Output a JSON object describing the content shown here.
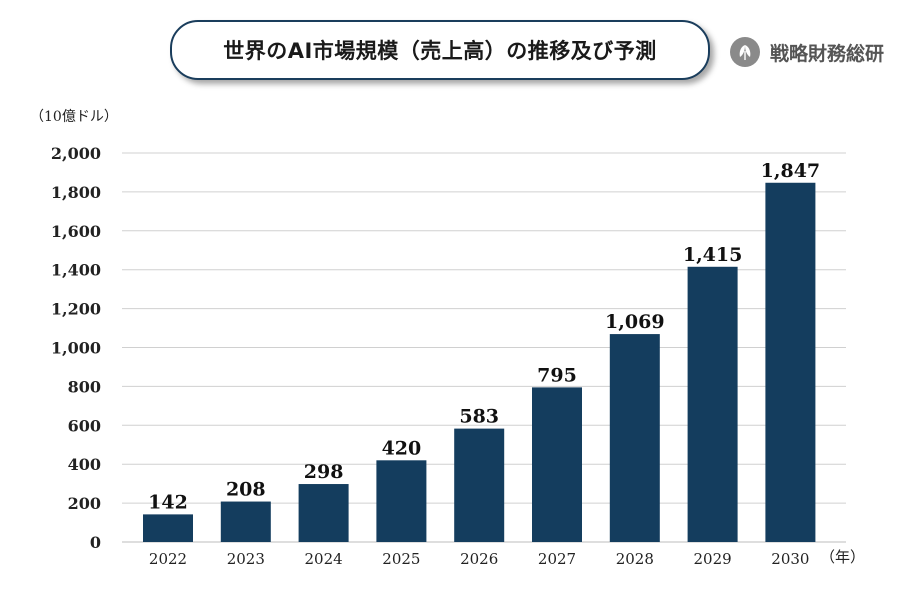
{
  "header": {
    "title": "世界のAI市場規模（売上高）の推移及び予測",
    "brand": "戦略財務総研"
  },
  "chart_data": {
    "type": "bar",
    "categories": [
      "2022",
      "2023",
      "2024",
      "2025",
      "2026",
      "2027",
      "2028",
      "2029",
      "2030"
    ],
    "values": [
      142,
      208,
      298,
      420,
      583,
      795,
      1069,
      1415,
      1847
    ],
    "value_labels": [
      "142",
      "208",
      "298",
      "420",
      "583",
      "795",
      "1,069",
      "1,415",
      "1,847"
    ],
    "yticks": [
      "0",
      "200",
      "400",
      "600",
      "800",
      "1,000",
      "1,200",
      "1,400",
      "1,600",
      "1,800",
      "2,000"
    ],
    "ylim": [
      0,
      2000
    ],
    "ylabel": "（10億ドル）",
    "xlabel": "（年）",
    "grid": true,
    "bar_color": "#143d5e"
  }
}
